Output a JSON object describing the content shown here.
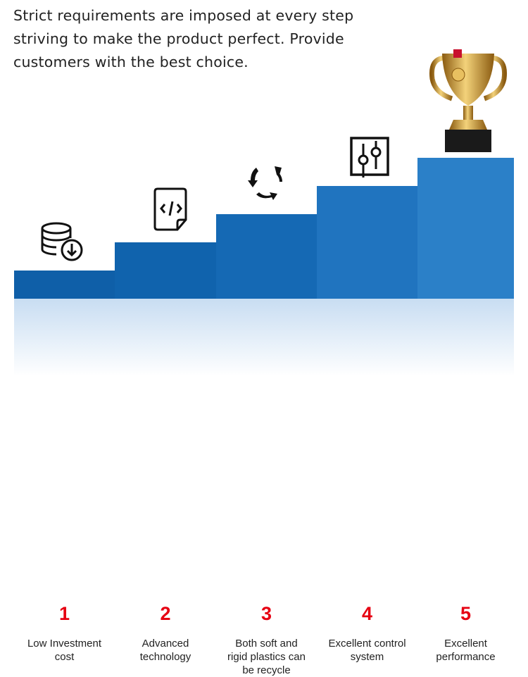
{
  "intro": "Strict requirements are imposed at every step striving to make the product perfect. Provide customers with the best choice.",
  "steps": [
    {
      "number": "1",
      "label": "Low Investment cost",
      "icon": "database-download-icon",
      "color": "#0f5fa8"
    },
    {
      "number": "2",
      "label": "Advanced technology",
      "icon": "code-file-icon",
      "color": "#1063ad"
    },
    {
      "number": "3",
      "label": "Both soft and rigid plastics can be recycle",
      "icon": "recycle-arrows-icon",
      "color": "#1569b4"
    },
    {
      "number": "4",
      "label": "Excellent control system",
      "icon": "sliders-icon",
      "color": "#2074bf"
    },
    {
      "number": "5",
      "label": "Excellent performance",
      "icon": "trophy-icon",
      "color": "#2b80c8"
    }
  ]
}
